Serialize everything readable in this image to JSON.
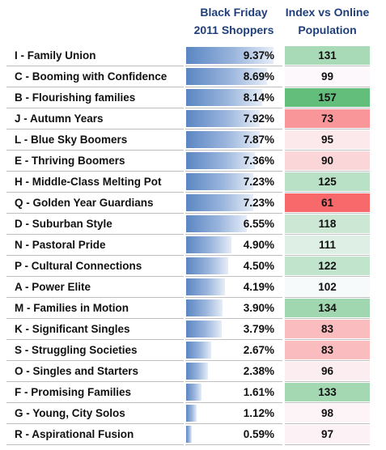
{
  "chart_data": {
    "type": "table",
    "columns": [
      "",
      "Black Friday\n2011 Shoppers",
      "Index vs Online\nPopulation"
    ],
    "rows": [
      {
        "segment": "I - Family Union",
        "share": "9.37%",
        "share_value": 9.37,
        "index": 131
      },
      {
        "segment": "C - Booming with Confidence",
        "share": "8.69%",
        "share_value": 8.69,
        "index": 99
      },
      {
        "segment": "B - Flourishing families",
        "share": "8.14%",
        "share_value": 8.14,
        "index": 157
      },
      {
        "segment": "J - Autumn Years",
        "share": "7.92%",
        "share_value": 7.92,
        "index": 73
      },
      {
        "segment": "L - Blue Sky Boomers",
        "share": "7.87%",
        "share_value": 7.87,
        "index": 95
      },
      {
        "segment": "E - Thriving Boomers",
        "share": "7.36%",
        "share_value": 7.36,
        "index": 90
      },
      {
        "segment": "H - Middle-Class Melting Pot",
        "share": "7.23%",
        "share_value": 7.23,
        "index": 125
      },
      {
        "segment": "Q - Golden Year Guardians",
        "share": "7.23%",
        "share_value": 7.23,
        "index": 61
      },
      {
        "segment": "D - Suburban Style",
        "share": "6.55%",
        "share_value": 6.55,
        "index": 118
      },
      {
        "segment": "N - Pastoral Pride",
        "share": "4.90%",
        "share_value": 4.9,
        "index": 111
      },
      {
        "segment": "P - Cultural Connections",
        "share": "4.50%",
        "share_value": 4.5,
        "index": 122
      },
      {
        "segment": "A - Power Elite",
        "share": "4.19%",
        "share_value": 4.19,
        "index": 102
      },
      {
        "segment": "M - Families in Motion",
        "share": "3.90%",
        "share_value": 3.9,
        "index": 134
      },
      {
        "segment": "K - Significant Singles",
        "share": "3.79%",
        "share_value": 3.79,
        "index": 83
      },
      {
        "segment": "S - Struggling Societies",
        "share": "2.67%",
        "share_value": 2.67,
        "index": 83
      },
      {
        "segment": "O - Singles and Starters",
        "share": "2.38%",
        "share_value": 2.38,
        "index": 96
      },
      {
        "segment": "F - Promising Families",
        "share": "1.61%",
        "share_value": 1.61,
        "index": 133
      },
      {
        "segment": "G - Young, City Solos",
        "share": "1.12%",
        "share_value": 1.12,
        "index": 98
      },
      {
        "segment": "R - Aspirational Fusion",
        "share": "0.59%",
        "share_value": 0.59,
        "index": 97
      }
    ],
    "colors": {
      "header_text": "#1f3f7a",
      "bar_dark": "#5b86c3",
      "bar_light": "#e6edf7",
      "index_high": "#63be7b",
      "index_mid": "#fcfcff",
      "index_low": "#f8696b"
    }
  }
}
